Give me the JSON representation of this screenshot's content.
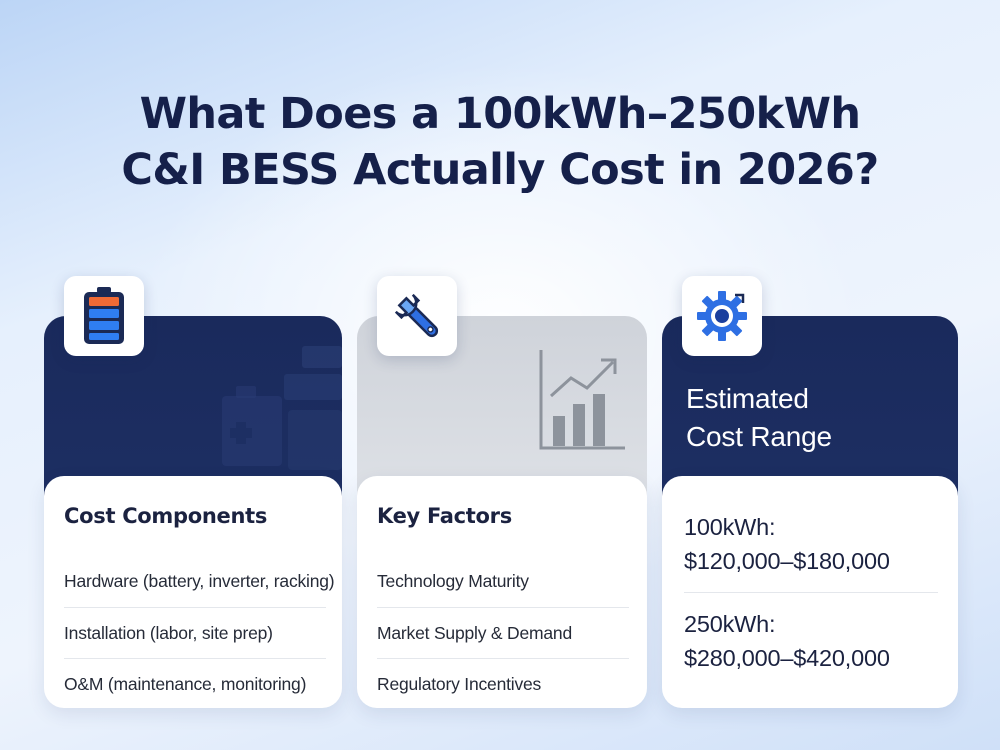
{
  "title": {
    "line1": "What Does a 100kWh–250kWh",
    "line2": "C&I BESS Actually Cost in 2026?"
  },
  "cards": [
    {
      "icon": "battery-icon",
      "heading": "Cost Components",
      "items": [
        "Hardware (battery, inverter, racking)",
        "Installation (labor, site prep)",
        "O&M (maintenance, monitoring)"
      ]
    },
    {
      "icon": "wrench-icon",
      "heading": "Key Factors",
      "items": [
        "Technology Maturity",
        "Market Supply & Demand",
        "Regulatory Incentives"
      ]
    },
    {
      "icon": "gear-icon",
      "heading_line1": "Estimated",
      "heading_line2": "Cost Range",
      "ranges": [
        {
          "label": "100kWh:",
          "value": "$120,000–$180,000"
        },
        {
          "label": "250kWh:",
          "value": "$280,000–$420,000"
        }
      ]
    }
  ],
  "colors": {
    "navy": "#1a2a5c",
    "title": "#15204a",
    "gray_panel": "#d5d8de"
  }
}
